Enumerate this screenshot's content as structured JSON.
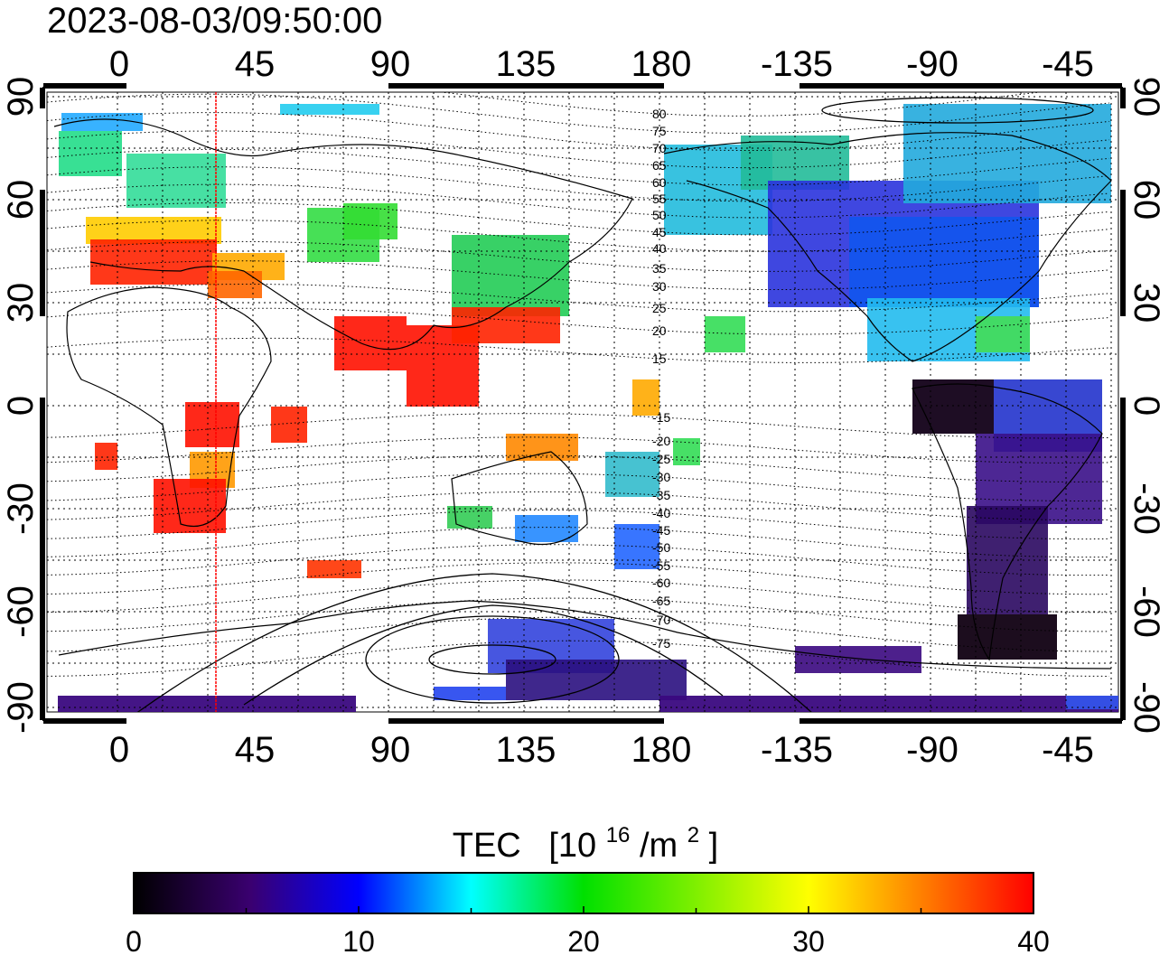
{
  "timestamp": "2023-08-03/09:50:00",
  "map": {
    "top_lon_labels": [
      "0",
      "45",
      "90",
      "135",
      "180",
      "-135",
      "-90",
      "-45"
    ],
    "bottom_lon_labels": [
      "0",
      "45",
      "90",
      "135",
      "180",
      "-135",
      "-90",
      "-45"
    ],
    "left_lat_labels": [
      "90",
      "60",
      "30",
      "0",
      "-30",
      "-60",
      "-90"
    ],
    "right_lat_labels": [
      "90",
      "60",
      "30",
      "0",
      "-30",
      "-60",
      "-90"
    ],
    "magnetic_lat_labels": [
      "80",
      "75",
      "70",
      "65",
      "60",
      "55",
      "50",
      "45",
      "40",
      "35",
      "30",
      "25",
      "20",
      "15",
      "-15",
      "-20",
      "-25",
      "-30",
      "-35",
      "-40",
      "-45",
      "-50",
      "-55",
      "-60",
      "-65",
      "-70",
      "-75"
    ],
    "marker_line_color": "#ff0000"
  },
  "colorbar": {
    "title_prefix": "TEC",
    "unit_open": "[10",
    "unit_sup1": "16",
    "unit_mid": "/m",
    "unit_sup2": "2",
    "unit_close": "]",
    "min": 0,
    "max": 40,
    "tick_labels": [
      "0",
      "10",
      "20",
      "30",
      "40"
    ],
    "stops": [
      "#000000",
      "#3a0070",
      "#0000ff",
      "#00ffff",
      "#00ff00",
      "#ffff00",
      "#ff8000",
      "#ff0000"
    ]
  }
}
